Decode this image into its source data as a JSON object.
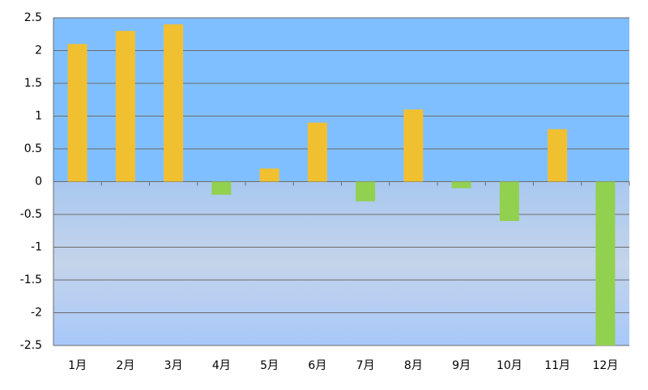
{
  "chart_data": {
    "type": "bar",
    "categories": [
      "1月",
      "2月",
      "3月",
      "4月",
      "5月",
      "6月",
      "7月",
      "8月",
      "9月",
      "10月",
      "11月",
      "12月"
    ],
    "values": [
      2.1,
      2.3,
      2.4,
      -0.2,
      0.2,
      0.9,
      -0.3,
      1.1,
      -0.1,
      -0.6,
      0.8,
      -2.5
    ],
    "positive_color": "#f0c030",
    "negative_color": "#92d050",
    "ylim": [
      -2.5,
      2.5
    ],
    "yticks": [
      -2.5,
      -2,
      -1.5,
      -1,
      -0.5,
      0,
      0.5,
      1,
      1.5,
      2,
      2.5
    ],
    "grid": true
  }
}
